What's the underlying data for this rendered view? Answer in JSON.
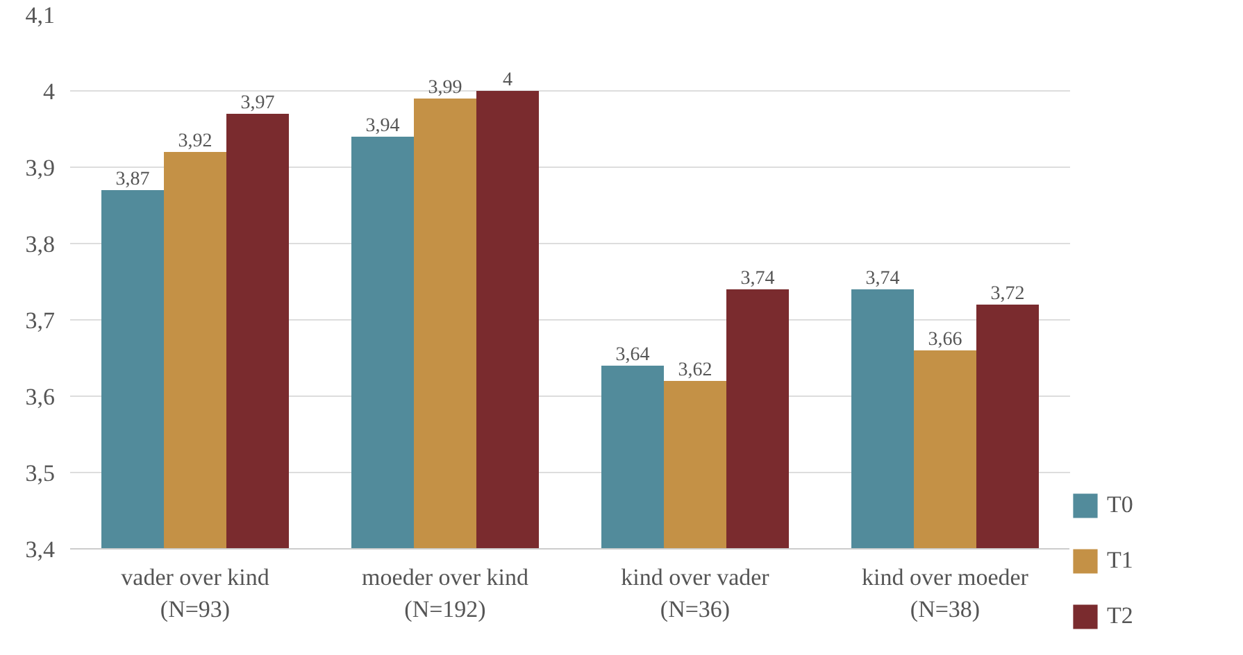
{
  "chart_data": {
    "type": "bar",
    "categories": [
      "vader over kind\n(N=93)",
      "moeder over kind\n(N=192)",
      "kind over vader\n(N=36)",
      "kind over moeder\n(N=38)"
    ],
    "series": [
      {
        "name": "T0",
        "color": "#528b9b",
        "values": [
          3.87,
          3.94,
          3.64,
          3.74
        ],
        "value_labels": [
          "3,87",
          "3,94",
          "3,64",
          "3,74"
        ]
      },
      {
        "name": "T1",
        "color": "#c49146",
        "values": [
          3.92,
          3.99,
          3.62,
          3.66
        ],
        "value_labels": [
          "3,92",
          "3,99",
          "3,62",
          "3,66"
        ]
      },
      {
        "name": "T2",
        "color": "#7a2b2e",
        "values": [
          3.97,
          4,
          3.74,
          3.72
        ],
        "value_labels": [
          "3,97",
          "4",
          "3,74",
          "3,72"
        ]
      }
    ],
    "ylim": [
      3.4,
      4.1
    ],
    "yticks": [
      {
        "value": 3.4,
        "label": "3,4"
      },
      {
        "value": 3.5,
        "label": "3,5"
      },
      {
        "value": 3.6,
        "label": "3,6"
      },
      {
        "value": 3.7,
        "label": "3,7"
      },
      {
        "value": 3.8,
        "label": "3,8"
      },
      {
        "value": 3.9,
        "label": "3,9"
      },
      {
        "value": 4,
        "label": "4"
      },
      {
        "value": 4.1,
        "label": "4,1"
      }
    ],
    "grid": "y",
    "legend": "right"
  }
}
